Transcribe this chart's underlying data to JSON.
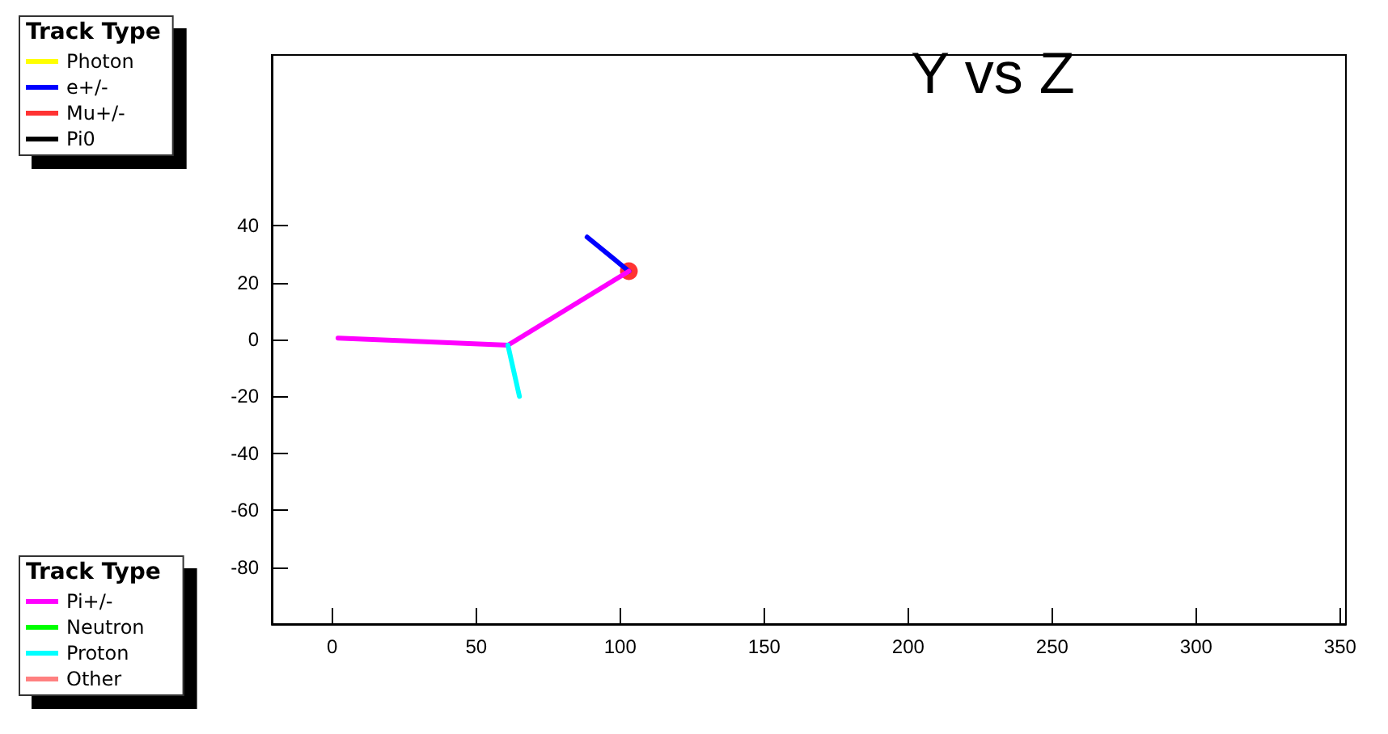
{
  "chart_data": {
    "type": "line",
    "title": "Y vs Z",
    "legend_title": "Track Type",
    "legend": "left",
    "marker": "none",
    "grid": false,
    "xlim": [
      -21,
      352
    ],
    "xticks": [
      0,
      50,
      100,
      150,
      200,
      250,
      300,
      350
    ],
    "ylim": [
      -100,
      100
    ],
    "yticks": [
      -80,
      -60,
      -40,
      -20,
      0,
      20,
      40
    ],
    "series": [
      {
        "name": "Photon",
        "color": "#ffff00"
      },
      {
        "name": "e+/-",
        "color": "#0000ff",
        "x": [
          88.5,
          103
        ],
        "values": [
          36,
          24
        ]
      },
      {
        "name": "Mu+/-",
        "color": "#ff0000",
        "type": "scatter",
        "marker": "circle",
        "x": [
          103
        ],
        "values": [
          24
        ]
      },
      {
        "name": "Pi0",
        "color": "#000000"
      },
      {
        "name": "Pi+/-",
        "color": "#ff00ff",
        "x": [
          2,
          61,
          103
        ],
        "values": [
          0.5,
          -2,
          24
        ]
      },
      {
        "name": "Neutron",
        "color": "#00ff00"
      },
      {
        "name": "Proton",
        "color": "#00ffff",
        "x": [
          61,
          65
        ],
        "values": [
          -2,
          -20
        ]
      },
      {
        "name": "Other",
        "color": "#ff8080"
      }
    ]
  }
}
